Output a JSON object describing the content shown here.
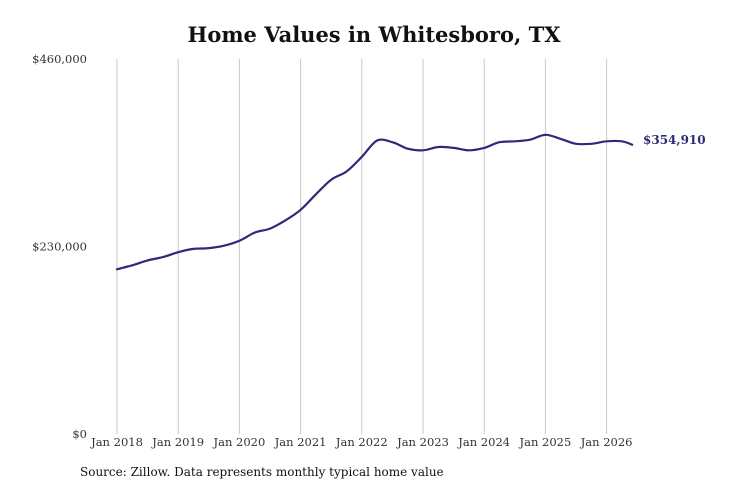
{
  "chart_data": {
    "type": "line",
    "title": "Home Values in Whitesboro, TX",
    "xlabel": "",
    "ylabel": "",
    "ylim": [
      0,
      460000
    ],
    "y_ticks": [
      0,
      230000,
      460000
    ],
    "y_tick_labels": [
      "$0",
      "$230,000",
      "$460,000"
    ],
    "x_ticks": [
      "2018-01",
      "2019-01",
      "2020-01",
      "2021-01",
      "2022-01",
      "2023-01",
      "2024-01",
      "2025-01",
      "2026-01"
    ],
    "x_tick_labels": [
      "Jan 2018",
      "Jan 2019",
      "Jan 2020",
      "Jan 2021",
      "Jan 2022",
      "Jan 2023",
      "Jan 2024",
      "Jan 2025",
      "Jan 2026"
    ],
    "grid": "vertical",
    "line_color": "#2e2a7a",
    "end_label": "$354,910",
    "series": [
      {
        "x": [
          "2018-01",
          "2018-04",
          "2018-07",
          "2018-10",
          "2019-01",
          "2019-04",
          "2019-07",
          "2019-10",
          "2020-01",
          "2020-04",
          "2020-07",
          "2020-10",
          "2021-01",
          "2021-04",
          "2021-07",
          "2021-10",
          "2022-01",
          "2022-04",
          "2022-07",
          "2022-10",
          "2023-01",
          "2023-04",
          "2023-07",
          "2023-10",
          "2024-01",
          "2024-04",
          "2024-07",
          "2024-10",
          "2025-01",
          "2025-04",
          "2025-07",
          "2025-10",
          "2026-01",
          "2026-04",
          "2026-06"
        ],
        "values": [
          202000,
          207000,
          213000,
          217000,
          223000,
          227000,
          228000,
          231000,
          237000,
          247000,
          252000,
          262000,
          275000,
          294000,
          312000,
          322000,
          340000,
          360000,
          358000,
          350000,
          348000,
          352000,
          351000,
          348000,
          351000,
          358000,
          359000,
          361000,
          367000,
          362000,
          356000,
          356000,
          359000,
          359000,
          354910
        ]
      }
    ]
  },
  "footer": {
    "source": "Source: Zillow. Data represents monthly typical home value"
  }
}
